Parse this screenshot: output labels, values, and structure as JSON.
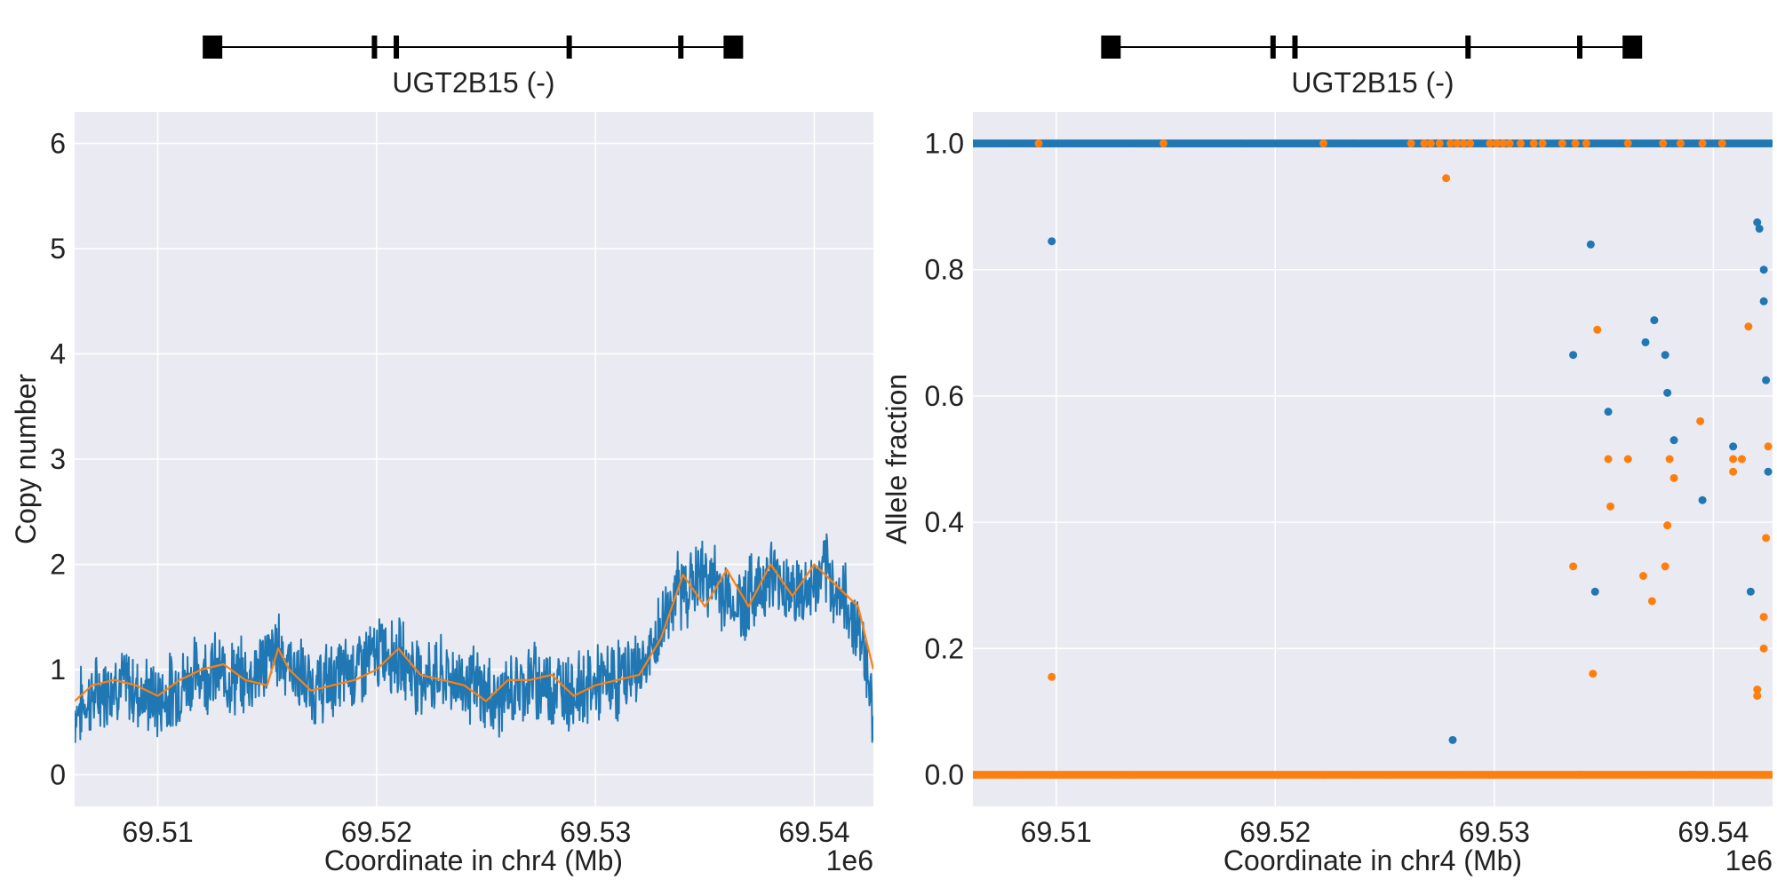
{
  "chart_data": [
    {
      "type": "line",
      "panel": "copy-number",
      "gene_label": "UGT2B15 (-)",
      "xlabel": "Coordinate in chr4 (Mb)",
      "ylabel": "Copy number",
      "x_offset_label": "1e6",
      "xlim": [
        69.5062,
        69.5427
      ],
      "ylim": [
        -0.3,
        6.3
      ],
      "x_ticks": [
        69.51,
        69.52,
        69.53,
        69.54
      ],
      "x_tick_labels": [
        "69.51",
        "69.52",
        "69.53",
        "69.54"
      ],
      "y_ticks": [
        0,
        1,
        2,
        3,
        4,
        5,
        6
      ],
      "y_tick_labels": [
        "0",
        "1",
        "2",
        "3",
        "4",
        "5",
        "6"
      ],
      "grid": true,
      "series": [
        {
          "color": "#1f77b4",
          "style": "raw-noisy",
          "x": [
            69.5062,
            69.508,
            69.51,
            69.512,
            69.514,
            69.5155,
            69.517,
            69.519,
            69.5205,
            69.522,
            69.524,
            69.5255,
            69.527,
            69.529,
            69.531,
            69.5325,
            69.5335,
            69.535,
            69.5365,
            69.538,
            69.5395,
            69.5405,
            69.5415,
            69.542,
            69.5425,
            69.5427
          ],
          "y": [
            0.6,
            0.9,
            0.7,
            1.0,
            0.9,
            1.2,
            0.8,
            1.0,
            1.2,
            0.95,
            0.9,
            0.7,
            0.9,
            0.8,
            0.9,
            1.1,
            1.7,
            1.9,
            1.6,
            1.9,
            1.7,
            1.9,
            1.6,
            1.4,
            1.0,
            0.3
          ],
          "noise_amplitude": 0.3
        },
        {
          "color": "#ff7f0e",
          "style": "smoothed",
          "x": [
            69.5062,
            69.507,
            69.508,
            69.509,
            69.51,
            69.511,
            69.512,
            69.513,
            69.514,
            69.515,
            69.5155,
            69.516,
            69.517,
            69.518,
            69.519,
            69.52,
            69.521,
            69.522,
            69.523,
            69.524,
            69.525,
            69.526,
            69.527,
            69.528,
            69.529,
            69.53,
            69.531,
            69.532,
            69.533,
            69.534,
            69.535,
            69.536,
            69.537,
            69.538,
            69.539,
            69.54,
            69.541,
            69.542,
            69.5427
          ],
          "y": [
            0.7,
            0.85,
            0.9,
            0.85,
            0.75,
            0.9,
            1.0,
            1.05,
            0.9,
            0.85,
            1.2,
            1.0,
            0.8,
            0.85,
            0.9,
            1.0,
            1.2,
            0.95,
            0.9,
            0.85,
            0.7,
            0.9,
            0.9,
            0.95,
            0.75,
            0.85,
            0.9,
            0.95,
            1.3,
            1.9,
            1.6,
            1.95,
            1.6,
            2.0,
            1.7,
            2.0,
            1.8,
            1.6,
            1.0
          ]
        }
      ]
    },
    {
      "type": "scatter",
      "panel": "allele-fraction",
      "gene_label": "UGT2B15 (-)",
      "xlabel": "Coordinate in chr4 (Mb)",
      "ylabel": "Allele fraction",
      "x_offset_label": "1e6",
      "xlim": [
        69.5062,
        69.5427
      ],
      "ylim": [
        -0.05,
        1.05
      ],
      "x_ticks": [
        69.51,
        69.52,
        69.53,
        69.54
      ],
      "x_tick_labels": [
        "69.51",
        "69.52",
        "69.53",
        "69.54"
      ],
      "y_ticks": [
        0.0,
        0.2,
        0.4,
        0.6,
        0.8,
        1.0
      ],
      "y_tick_labels": [
        "0.0",
        "0.2",
        "0.4",
        "0.6",
        "0.8",
        "1.0"
      ],
      "grid": true,
      "band_ranges": [
        [
          69.5062,
          69.5222
        ],
        [
          69.5222,
          69.5427
        ]
      ],
      "series": [
        {
          "color": "#1f77b4",
          "band_value": 1.0,
          "points": [
            [
              69.5098,
              0.845
            ],
            [
              69.5281,
              0.055
            ],
            [
              69.5344,
              0.84
            ],
            [
              69.5346,
              0.29
            ],
            [
              69.5336,
              0.665
            ],
            [
              69.5352,
              0.575
            ],
            [
              69.5369,
              0.685
            ],
            [
              69.5373,
              0.72
            ],
            [
              69.5378,
              0.665
            ],
            [
              69.5379,
              0.605
            ],
            [
              69.5382,
              0.53
            ],
            [
              69.5395,
              0.435
            ],
            [
              69.5409,
              0.52
            ],
            [
              69.5417,
              0.29
            ],
            [
              69.542,
              0.875
            ],
            [
              69.5421,
              0.865
            ],
            [
              69.5423,
              0.8
            ],
            [
              69.5423,
              0.75
            ],
            [
              69.5424,
              0.625
            ],
            [
              69.5425,
              0.48
            ]
          ]
        },
        {
          "color": "#ff7f0e",
          "band_value": 0.0,
          "points": [
            [
              69.5098,
              0.155
            ],
            [
              69.5278,
              0.945
            ],
            [
              69.5336,
              0.33
            ],
            [
              69.5345,
              0.16
            ],
            [
              69.5347,
              0.705
            ],
            [
              69.5352,
              0.5
            ],
            [
              69.5353,
              0.425
            ],
            [
              69.5361,
              0.5
            ],
            [
              69.5368,
              0.315
            ],
            [
              69.5372,
              0.275
            ],
            [
              69.5378,
              0.33
            ],
            [
              69.5379,
              0.395
            ],
            [
              69.538,
              0.5
            ],
            [
              69.5382,
              0.47
            ],
            [
              69.5394,
              0.56
            ],
            [
              69.5409,
              0.5
            ],
            [
              69.5409,
              0.48
            ],
            [
              69.5413,
              0.5
            ],
            [
              69.5416,
              0.71
            ],
            [
              69.542,
              0.135
            ],
            [
              69.542,
              0.125
            ],
            [
              69.5423,
              0.25
            ],
            [
              69.5423,
              0.2
            ],
            [
              69.5424,
              0.375
            ],
            [
              69.5425,
              0.52
            ]
          ],
          "top_band_points": [
            69.5092,
            69.5149,
            69.5222,
            69.5262,
            69.5268,
            69.5271,
            69.5275,
            69.528,
            69.5283,
            69.5286,
            69.5289,
            69.5298,
            69.5301,
            69.5304,
            69.5307,
            69.5312,
            69.5318,
            69.5322,
            69.5331,
            69.5337,
            69.5342,
            69.5361,
            69.5377,
            69.5385,
            69.5395,
            69.5404
          ]
        }
      ]
    }
  ],
  "gene_structure": {
    "exons_mb": [
      69.5125,
      69.5199,
      69.5209,
      69.5288,
      69.5339,
      69.5363
    ]
  }
}
